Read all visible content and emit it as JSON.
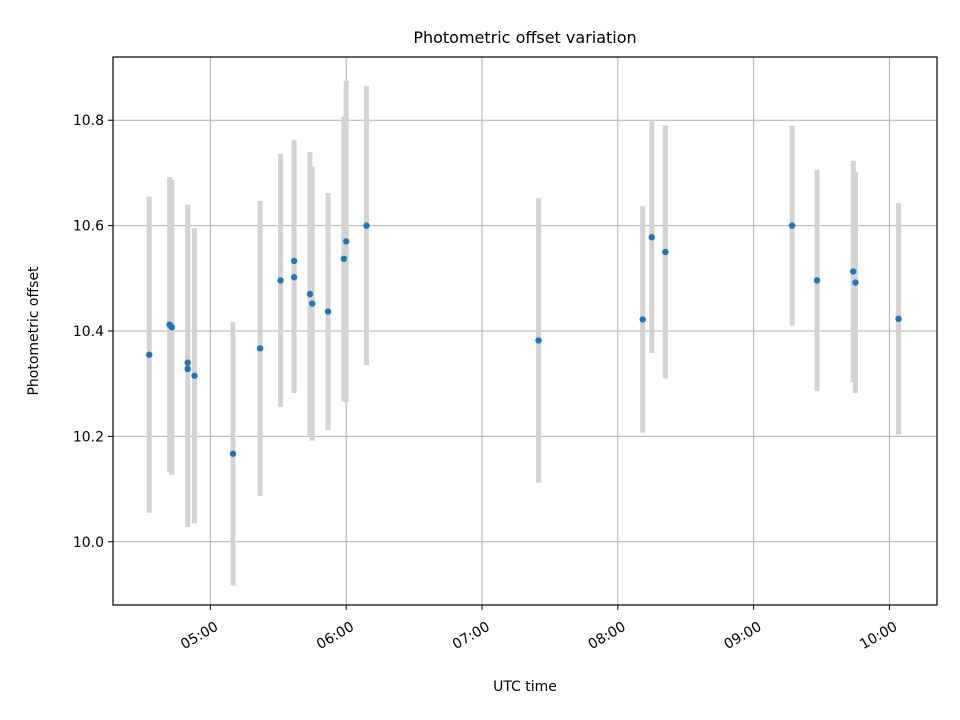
{
  "chart_data": {
    "type": "scatter",
    "title": "Photometric offset variation",
    "xlabel": "UTC time",
    "ylabel": "Photometric offset",
    "xlim": [
      "04:17",
      "10:21"
    ],
    "ylim": [
      9.88,
      10.92
    ],
    "grid": true,
    "x_ticks": [
      "05:00",
      "06:00",
      "07:00",
      "08:00",
      "09:00",
      "10:00"
    ],
    "y_ticks": [
      10.0,
      10.2,
      10.4,
      10.6,
      10.8
    ],
    "y_tick_labels": [
      "10.0",
      "10.2",
      "10.4",
      "10.6",
      "10.8"
    ],
    "colors": {
      "points": "#1f77b4",
      "error_bars": "#d3d3d3",
      "grid": "#b0b0b0"
    },
    "points": [
      {
        "x": "04:33",
        "y": 10.355,
        "err": 0.3
      },
      {
        "x": "04:42",
        "y": 10.412,
        "err": 0.28
      },
      {
        "x": "04:43",
        "y": 10.407,
        "err": 0.28
      },
      {
        "x": "04:50",
        "y": 10.34,
        "err": 0.3
      },
      {
        "x": "04:50",
        "y": 10.328,
        "err": 0.3
      },
      {
        "x": "04:53",
        "y": 10.315,
        "err": 0.28
      },
      {
        "x": "05:10",
        "y": 10.167,
        "err": 0.25
      },
      {
        "x": "05:22",
        "y": 10.367,
        "err": 0.28
      },
      {
        "x": "05:31",
        "y": 10.496,
        "err": 0.24
      },
      {
        "x": "05:37",
        "y": 10.533,
        "err": 0.23
      },
      {
        "x": "05:37",
        "y": 10.502,
        "err": 0.22
      },
      {
        "x": "05:44",
        "y": 10.47,
        "err": 0.27
      },
      {
        "x": "05:45",
        "y": 10.452,
        "err": 0.26
      },
      {
        "x": "05:52",
        "y": 10.437,
        "err": 0.225
      },
      {
        "x": "05:59",
        "y": 10.537,
        "err": 0.27
      },
      {
        "x": "06:00",
        "y": 10.57,
        "err": 0.305
      },
      {
        "x": "06:09",
        "y": 10.6,
        "err": 0.265
      },
      {
        "x": "07:25",
        "y": 10.382,
        "err": 0.27
      },
      {
        "x": "08:11",
        "y": 10.422,
        "err": 0.215
      },
      {
        "x": "08:15",
        "y": 10.578,
        "err": 0.22
      },
      {
        "x": "08:21",
        "y": 10.55,
        "err": 0.24
      },
      {
        "x": "09:17",
        "y": 10.6,
        "err": 0.19
      },
      {
        "x": "09:28",
        "y": 10.496,
        "err": 0.21
      },
      {
        "x": "09:44",
        "y": 10.513,
        "err": 0.21
      },
      {
        "x": "09:45",
        "y": 10.492,
        "err": 0.21
      },
      {
        "x": "10:04",
        "y": 10.423,
        "err": 0.22
      }
    ]
  }
}
